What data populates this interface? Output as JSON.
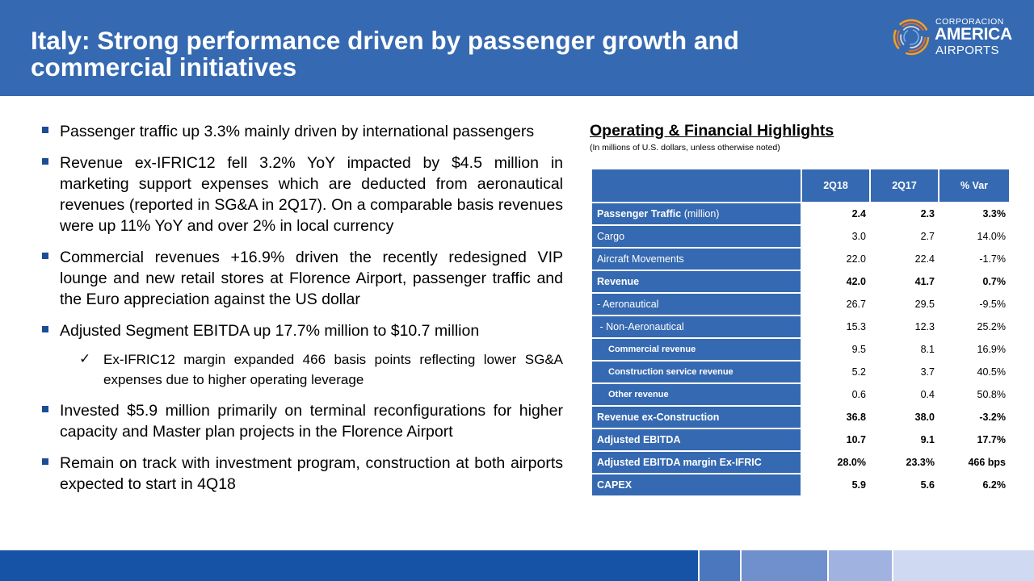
{
  "header": {
    "title": "Italy: Strong performance driven by passenger growth and commercial initiatives"
  },
  "logo": {
    "line1": "CORPORACION",
    "line2": "AMERICA",
    "line3": "AIRPORTS",
    "icon": "ring-swirl-logo-icon"
  },
  "bullets": [
    "Passenger traffic up 3.3% mainly driven by international passengers",
    "Revenue ex-IFRIC12 fell 3.2% YoY  impacted by $4.5 million in marketing support expenses which are deducted from aeronautical revenues   (reported in SG&A in 2Q17). On a comparable basis revenues were up 11% YoY and over 2% in local currency",
    "Commercial revenues +16.9% driven the recently redesigned VIP lounge and new retail stores at Florence Airport, passenger traffic and the Euro appreciation against the US dollar",
    "Adjusted Segment EBITDA up 17.7% million to $10.7 million",
    "Ex-IFRIC12 margin expanded 466 basis points reflecting lower SG&A expenses due to higher operating leverage",
    "Invested $5.9 million primarily on terminal reconfigurations for higher capacity and Master plan projects in the Florence Airport",
    "Remain on track with investment program, construction at both airports expected to start in 4Q18"
  ],
  "highlights": {
    "title": "Operating & Financial Highlights",
    "note": "(In millions of U.S. dollars, unless otherwise noted)",
    "columns": [
      "2Q18",
      "2Q17",
      "% Var"
    ],
    "rows": [
      {
        "label": "Passenger Traffic",
        "unit": " (million)",
        "values": [
          "2.4",
          "2.3",
          "3.3%"
        ]
      },
      {
        "label": "Cargo",
        "values": [
          "3.0",
          "2.7",
          "14.0%"
        ]
      },
      {
        "label": "Aircraft Movements",
        "values": [
          "22.0",
          "22.4",
          "-1.7%"
        ]
      },
      {
        "label": "Revenue",
        "values": [
          "42.0",
          "41.7",
          "0.7%"
        ]
      },
      {
        "label": "-  Aeronautical",
        "values": [
          "26.7",
          "29.5",
          "-9.5%"
        ]
      },
      {
        "label": " - Non-Aeronautical",
        "values": [
          "15.3",
          "12.3",
          "25.2%"
        ]
      },
      {
        "label": "Commercial revenue",
        "values": [
          "9.5",
          "8.1",
          "16.9%"
        ]
      },
      {
        "label": "Construction service revenue",
        "values": [
          "5.2",
          "3.7",
          "40.5%"
        ]
      },
      {
        "label": "Other revenue",
        "values": [
          "0.6",
          "0.4",
          "50.8%"
        ]
      },
      {
        "label": "Revenue ex-Construction",
        "values": [
          "36.8",
          "38.0",
          "-3.2%"
        ]
      },
      {
        "label": "Adjusted EBITDA",
        "values": [
          "10.7",
          "9.1",
          "17.7%"
        ]
      },
      {
        "label": "Adjusted EBITDA margin Ex-IFRIC",
        "values": [
          "28.0%",
          "23.3%",
          "466 bps"
        ]
      },
      {
        "label": "CAPEX",
        "values": [
          "5.9",
          "5.6",
          "6.2%"
        ]
      }
    ]
  },
  "colors": {
    "brand_blue": "#3569b1",
    "footer_blue": "#1653a6"
  }
}
